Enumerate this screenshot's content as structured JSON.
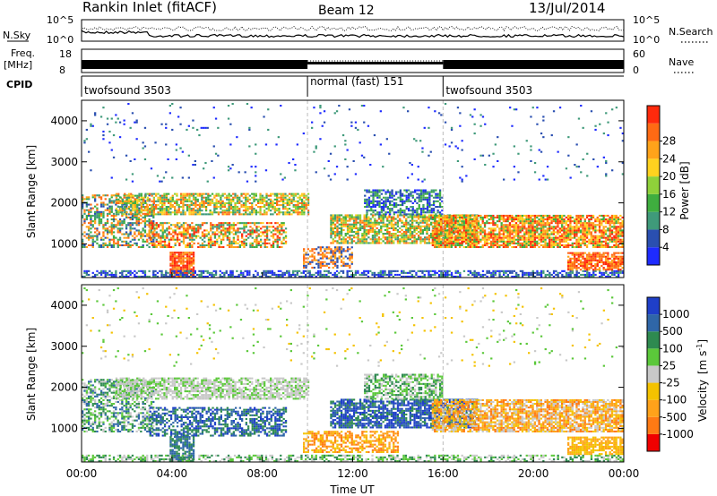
{
  "header": {
    "station": "Rankin Inlet (fitACF)",
    "beam": "Beam 12",
    "date": "13/Jul/2014"
  },
  "top_panels": {
    "nsky_label": "N.Sky",
    "nsearch_label": "N.Search",
    "nsky_ticks": [
      "10^5",
      "10^0"
    ],
    "nsearch_ticks": [
      "10^5",
      "10^0"
    ],
    "freq_label_1": "Freq.",
    "freq_label_2": "[MHz]",
    "freq_ticks": [
      "18",
      "8"
    ],
    "nave_label": "Nave",
    "nave_ticks": [
      "60",
      "0"
    ],
    "cpid_label": "CPID",
    "cpid_segments": [
      {
        "label": "twofsound 3503",
        "start": 0,
        "end": 10
      },
      {
        "label": "normal (fast) 151",
        "start": 10,
        "end": 16
      },
      {
        "label": "twofsound 3503",
        "start": 16,
        "end": 24
      }
    ]
  },
  "chart_data": [
    {
      "type": "heatmap",
      "ylabel": "Slant Range [km]",
      "xlim": [
        0,
        24
      ],
      "ylim": [
        180,
        4500
      ],
      "yticks": [
        "1000",
        "2000",
        "3000",
        "4000"
      ],
      "colorbar": {
        "label": "Power [dB]",
        "ticks": [
          "4",
          "8",
          "12",
          "16",
          "20",
          "24",
          "28"
        ],
        "colors": [
          "#1e2bff",
          "#2a4fb0",
          "#3f9a7a",
          "#3fae3f",
          "#8fd13a",
          "#ffd21f",
          "#ffa31a",
          "#ff6a14",
          "#ff2a0c"
        ]
      }
    },
    {
      "type": "heatmap",
      "xlabel": "Time UT",
      "ylabel": "Slant Range [km]",
      "xlim": [
        0,
        24
      ],
      "ylim": [
        180,
        4500
      ],
      "xticks": [
        "00:00",
        "04:00",
        "08:00",
        "12:00",
        "16:00",
        "20:00",
        "00:00"
      ],
      "yticks": [
        "1000",
        "2000",
        "3000",
        "4000"
      ],
      "colorbar": {
        "label_main": "Velocity",
        "label_units": "[m s",
        "label_exp": "-1",
        "label_close": "]",
        "ticks": [
          "1000",
          "500",
          "100",
          "25",
          "-25",
          "-100",
          "-500",
          "-1000"
        ],
        "colors": [
          "#1f3fc8",
          "#2f66a8",
          "#2e8a50",
          "#5bc83a",
          "#c8c8c8",
          "#f4c200",
          "#ffa21a",
          "#ff7a14",
          "#f00000"
        ]
      }
    }
  ]
}
